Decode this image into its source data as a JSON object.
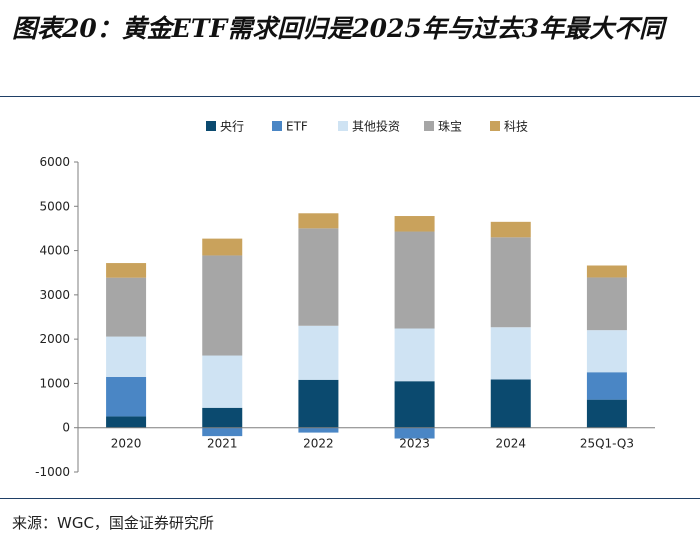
{
  "header": {
    "title": "图表20：黄金ETF需求回归是2025年与过去3年最大不同"
  },
  "footer": {
    "source": "来源：WGC，国金证券研究所"
  },
  "chart_data": {
    "type": "bar",
    "stacked": true,
    "categories": [
      "2020",
      "2021",
      "2022",
      "2023",
      "2024",
      "25Q1-Q3"
    ],
    "ylim": [
      -1000,
      6000
    ],
    "yticks": [
      -1000,
      0,
      1000,
      2000,
      3000,
      4000,
      5000,
      6000
    ],
    "grid": false,
    "legend_position": "top",
    "series": [
      {
        "name": "央行",
        "color": "#0b4a6f",
        "values": [
          255,
          450,
          1082,
          1050,
          1089,
          634
        ]
      },
      {
        "name": "ETF",
        "color": "#4a86c5",
        "values": [
          893,
          -190,
          -110,
          -244,
          -7,
          619
        ]
      },
      {
        "name": "其他投资",
        "color": "#cfe3f3",
        "values": [
          910,
          1180,
          1220,
          1190,
          1180,
          950
        ]
      },
      {
        "name": "珠宝",
        "color": "#a6a6a6",
        "values": [
          1330,
          2260,
          2200,
          2190,
          2030,
          1190
        ]
      },
      {
        "name": "科技",
        "color": "#c9a25c",
        "values": [
          330,
          380,
          340,
          350,
          350,
          270
        ]
      }
    ]
  }
}
